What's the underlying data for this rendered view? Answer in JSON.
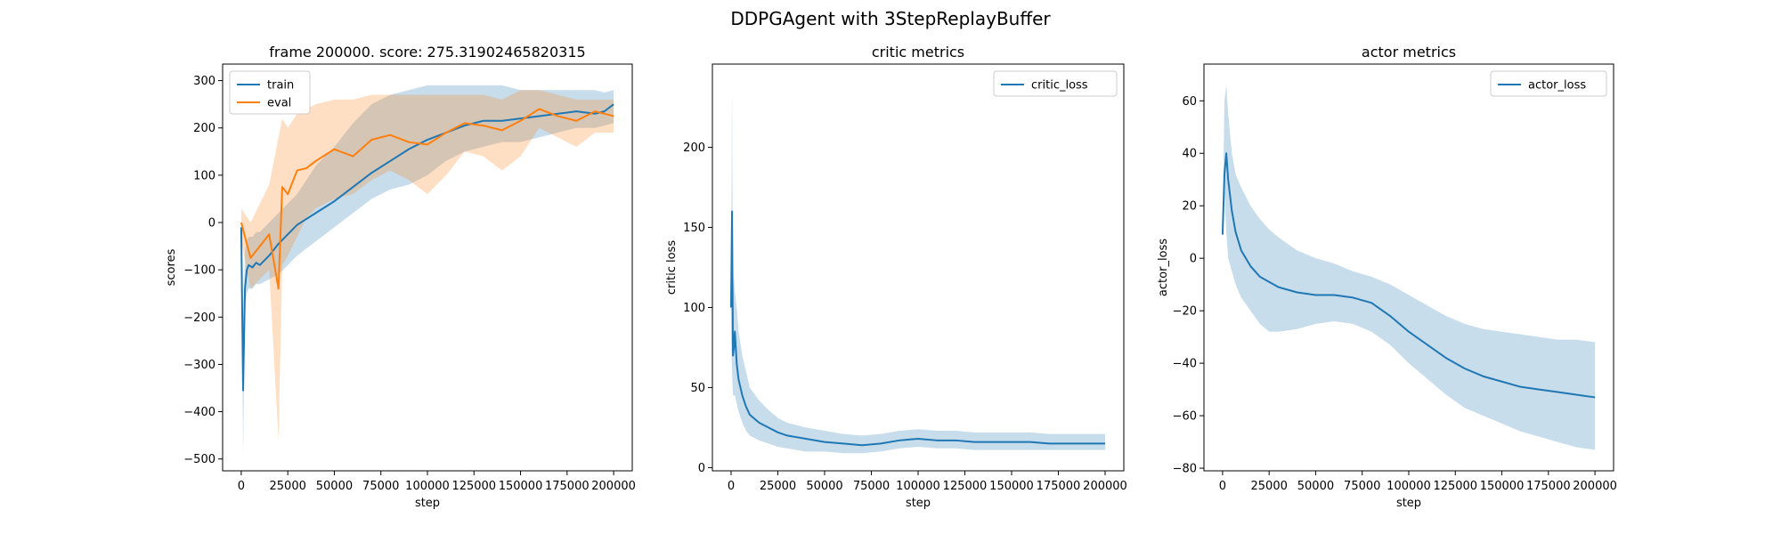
{
  "figure": {
    "suptitle": "DDPGAgent with 3StepReplayBuffer"
  },
  "colors": {
    "train": "#1f77b4",
    "eval": "#ff7f0e",
    "axis": "#000000"
  },
  "chart_data": [
    {
      "type": "line",
      "title": "frame 200000. score: 275.31902465820315",
      "xlabel": "step",
      "ylabel": "scores",
      "xlim": [
        -10000,
        210000
      ],
      "ylim": [
        -525,
        335
      ],
      "xticks": [
        0,
        25000,
        50000,
        75000,
        100000,
        125000,
        150000,
        175000,
        200000
      ],
      "xtick_labels": [
        "0",
        "25000",
        "50000",
        "75000",
        "100000",
        "125000",
        "150000",
        "175000",
        "200000"
      ],
      "yticks": [
        -500,
        -400,
        -300,
        -200,
        -100,
        0,
        100,
        200,
        300
      ],
      "ytick_labels": [
        "−500",
        "−400",
        "−300",
        "−200",
        "−100",
        "0",
        "100",
        "200",
        "300"
      ],
      "grid": false,
      "legend": "upper left",
      "series": [
        {
          "name": "train",
          "color": "#1f77b4",
          "x": [
            0,
            1000,
            2000,
            3000,
            4000,
            6000,
            8000,
            10000,
            15000,
            20000,
            25000,
            30000,
            40000,
            50000,
            60000,
            70000,
            80000,
            90000,
            100000,
            110000,
            120000,
            130000,
            140000,
            150000,
            160000,
            170000,
            180000,
            190000,
            195000,
            200000
          ],
          "y": [
            -10,
            -355,
            -140,
            -100,
            -90,
            -95,
            -85,
            -90,
            -70,
            -45,
            -25,
            -5,
            20,
            45,
            75,
            105,
            130,
            155,
            175,
            190,
            205,
            215,
            215,
            220,
            225,
            230,
            235,
            230,
            235,
            250
          ],
          "band_low": [
            -10,
            -490,
            -170,
            -150,
            -140,
            -140,
            -130,
            -130,
            -120,
            -110,
            -90,
            -70,
            -40,
            -10,
            20,
            50,
            70,
            80,
            100,
            130,
            150,
            160,
            170,
            170,
            180,
            190,
            200,
            200,
            205,
            210
          ],
          "band_high": [
            -10,
            -200,
            -60,
            -40,
            -30,
            -30,
            -20,
            -20,
            0,
            20,
            40,
            60,
            120,
            160,
            210,
            250,
            270,
            280,
            290,
            290,
            290,
            290,
            290,
            280,
            280,
            280,
            280,
            280,
            275,
            280
          ]
        },
        {
          "name": "eval",
          "color": "#ff7f0e",
          "x": [
            0,
            5000,
            10000,
            15000,
            20000,
            22000,
            25000,
            30000,
            35000,
            40000,
            50000,
            60000,
            70000,
            80000,
            90000,
            100000,
            110000,
            120000,
            130000,
            140000,
            150000,
            160000,
            170000,
            180000,
            190000,
            200000
          ],
          "y": [
            0,
            -75,
            -50,
            -25,
            -140,
            75,
            60,
            110,
            115,
            130,
            155,
            140,
            175,
            185,
            170,
            165,
            190,
            210,
            205,
            195,
            215,
            240,
            225,
            215,
            235,
            225
          ],
          "band_low": [
            -40,
            -140,
            -120,
            -100,
            -460,
            -90,
            -70,
            -30,
            10,
            30,
            50,
            60,
            90,
            110,
            90,
            60,
            100,
            150,
            140,
            110,
            140,
            200,
            180,
            160,
            190,
            190
          ],
          "band_high": [
            30,
            0,
            40,
            80,
            180,
            220,
            200,
            230,
            240,
            250,
            260,
            260,
            270,
            270,
            270,
            270,
            270,
            270,
            270,
            260,
            280,
            280,
            270,
            260,
            260,
            260
          ]
        }
      ]
    },
    {
      "type": "line",
      "title": "critic metrics",
      "xlabel": "step",
      "ylabel": "critic loss",
      "xlim": [
        -10000,
        210000
      ],
      "ylim": [
        -2,
        252
      ],
      "xticks": [
        0,
        25000,
        50000,
        75000,
        100000,
        125000,
        150000,
        175000,
        200000
      ],
      "xtick_labels": [
        "0",
        "25000",
        "50000",
        "75000",
        "100000",
        "125000",
        "150000",
        "175000",
        "200000"
      ],
      "yticks": [
        0,
        50,
        100,
        150,
        200
      ],
      "ytick_labels": [
        "0",
        "50",
        "100",
        "150",
        "200"
      ],
      "grid": false,
      "legend": "upper right",
      "series": [
        {
          "name": "critic_loss",
          "color": "#1f77b4",
          "x": [
            0,
            500,
            1000,
            1500,
            2000,
            3000,
            4000,
            6000,
            8000,
            10000,
            15000,
            20000,
            25000,
            30000,
            40000,
            50000,
            60000,
            70000,
            80000,
            90000,
            100000,
            110000,
            120000,
            130000,
            140000,
            150000,
            160000,
            170000,
            180000,
            190000,
            200000
          ],
          "y": [
            100,
            160,
            70,
            75,
            85,
            65,
            55,
            45,
            38,
            33,
            28,
            25,
            22,
            20,
            18,
            16,
            15,
            14,
            15,
            17,
            18,
            17,
            17,
            16,
            16,
            16,
            16,
            15,
            15,
            15,
            15
          ],
          "band_low": [
            80,
            60,
            45,
            45,
            45,
            40,
            35,
            28,
            23,
            20,
            17,
            15,
            13,
            12,
            10,
            10,
            9,
            9,
            10,
            12,
            13,
            12,
            12,
            11,
            11,
            11,
            11,
            11,
            11,
            11,
            11
          ],
          "band_high": [
            120,
            238,
            100,
            120,
            110,
            100,
            85,
            70,
            60,
            50,
            42,
            36,
            31,
            28,
            25,
            23,
            21,
            20,
            21,
            23,
            24,
            23,
            23,
            22,
            22,
            22,
            22,
            21,
            21,
            21,
            21
          ]
        }
      ]
    },
    {
      "type": "line",
      "title": "actor metrics",
      "xlabel": "step",
      "ylabel": "actor_loss",
      "xlim": [
        -10000,
        210000
      ],
      "ylim": [
        -81,
        74
      ],
      "xticks": [
        0,
        25000,
        50000,
        75000,
        100000,
        125000,
        150000,
        175000,
        200000
      ],
      "xtick_labels": [
        "0",
        "25000",
        "50000",
        "75000",
        "100000",
        "125000",
        "150000",
        "175000",
        "200000"
      ],
      "yticks": [
        -80,
        -60,
        -40,
        -20,
        0,
        20,
        40,
        60
      ],
      "ytick_labels": [
        "−80",
        "−60",
        "−40",
        "−20",
        "0",
        "20",
        "40",
        "60"
      ],
      "grid": false,
      "legend": "upper right",
      "series": [
        {
          "name": "actor_loss",
          "color": "#1f77b4",
          "x": [
            0,
            1000,
            2000,
            3000,
            5000,
            7000,
            10000,
            15000,
            20000,
            25000,
            30000,
            40000,
            50000,
            60000,
            70000,
            80000,
            90000,
            100000,
            110000,
            120000,
            130000,
            140000,
            150000,
            160000,
            170000,
            180000,
            190000,
            200000
          ],
          "y": [
            9,
            32,
            40,
            30,
            18,
            10,
            3,
            -3,
            -7,
            -9,
            -11,
            -13,
            -14,
            -14,
            -15,
            -17,
            -22,
            -28,
            -33,
            -38,
            -42,
            -45,
            -47,
            -49,
            -50,
            -51,
            -52,
            -53
          ],
          "band_low": [
            9,
            25,
            10,
            0,
            -5,
            -10,
            -15,
            -20,
            -25,
            -28,
            -28,
            -27,
            -25,
            -24,
            -25,
            -28,
            -33,
            -40,
            -46,
            -52,
            -57,
            -60,
            -63,
            -66,
            -68,
            -70,
            -72,
            -73
          ],
          "band_high": [
            9,
            60,
            66,
            55,
            40,
            32,
            27,
            20,
            15,
            11,
            8,
            3,
            0,
            -2,
            -5,
            -7,
            -10,
            -14,
            -18,
            -22,
            -25,
            -27,
            -28,
            -29,
            -30,
            -31,
            -31,
            -32
          ]
        }
      ]
    }
  ]
}
